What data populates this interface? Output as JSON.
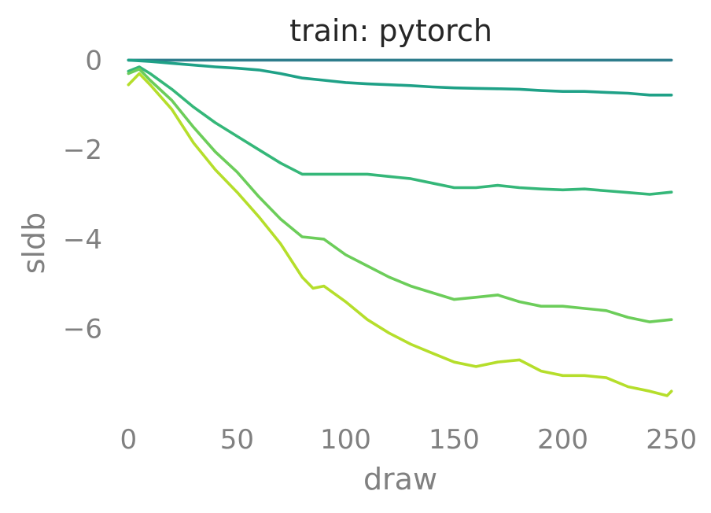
{
  "chart_data": {
    "type": "line",
    "title": "train: pytorch",
    "xlabel": "draw",
    "ylabel": "sldb",
    "xlim": [
      -3,
      253
    ],
    "ylim": [
      -8.1,
      0.5
    ],
    "xticks": [
      0,
      50,
      100,
      150,
      200,
      250
    ],
    "yticks": [
      0,
      -2,
      -4,
      -6
    ],
    "xtick_labels": [
      "0",
      "50",
      "100",
      "150",
      "200",
      "250"
    ],
    "ytick_labels": [
      "0",
      "−2",
      "−4",
      "−6"
    ],
    "grid": false,
    "legend": "none",
    "series": [
      {
        "color": "#2e7d8c",
        "x": [
          0,
          250
        ],
        "y": [
          0,
          0
        ]
      },
      {
        "color": "#1fa187",
        "x": [
          0,
          10,
          20,
          30,
          40,
          50,
          60,
          70,
          80,
          90,
          100,
          110,
          120,
          130,
          140,
          150,
          160,
          170,
          180,
          190,
          200,
          210,
          220,
          230,
          240,
          250
        ],
        "y": [
          0.0,
          -0.03,
          -0.07,
          -0.11,
          -0.15,
          -0.18,
          -0.22,
          -0.3,
          -0.4,
          -0.45,
          -0.5,
          -0.53,
          -0.55,
          -0.57,
          -0.6,
          -0.62,
          -0.63,
          -0.64,
          -0.65,
          -0.68,
          -0.7,
          -0.7,
          -0.72,
          -0.74,
          -0.78,
          -0.78
        ]
      },
      {
        "color": "#35b779",
        "x": [
          0,
          5,
          10,
          20,
          30,
          40,
          50,
          60,
          70,
          80,
          90,
          100,
          110,
          120,
          130,
          140,
          150,
          160,
          170,
          180,
          190,
          200,
          210,
          220,
          230,
          240,
          250
        ],
        "y": [
          -0.25,
          -0.15,
          -0.3,
          -0.65,
          -1.05,
          -1.4,
          -1.7,
          -2.0,
          -2.3,
          -2.55,
          -2.55,
          -2.55,
          -2.55,
          -2.6,
          -2.65,
          -2.75,
          -2.85,
          -2.85,
          -2.8,
          -2.85,
          -2.88,
          -2.9,
          -2.88,
          -2.92,
          -2.96,
          -3.0,
          -2.95
        ]
      },
      {
        "color": "#6ccd5a",
        "x": [
          0,
          5,
          10,
          20,
          30,
          40,
          50,
          60,
          70,
          80,
          90,
          100,
          110,
          120,
          130,
          140,
          150,
          160,
          170,
          180,
          190,
          200,
          210,
          220,
          230,
          240,
          250
        ],
        "y": [
          -0.3,
          -0.2,
          -0.45,
          -0.9,
          -1.5,
          -2.05,
          -2.5,
          -3.05,
          -3.55,
          -3.95,
          -4.0,
          -4.35,
          -4.6,
          -4.85,
          -5.05,
          -5.2,
          -5.35,
          -5.3,
          -5.25,
          -5.4,
          -5.5,
          -5.5,
          -5.55,
          -5.6,
          -5.75,
          -5.85,
          -5.8
        ]
      },
      {
        "color": "#b5de2b",
        "x": [
          0,
          5,
          10,
          20,
          30,
          40,
          50,
          60,
          70,
          80,
          85,
          90,
          100,
          110,
          120,
          130,
          140,
          150,
          160,
          170,
          180,
          190,
          200,
          210,
          220,
          230,
          240,
          248,
          250
        ],
        "y": [
          -0.55,
          -0.3,
          -0.55,
          -1.1,
          -1.85,
          -2.45,
          -2.95,
          -3.5,
          -4.1,
          -4.85,
          -5.1,
          -5.05,
          -5.4,
          -5.8,
          -6.1,
          -6.35,
          -6.55,
          -6.75,
          -6.85,
          -6.75,
          -6.7,
          -6.95,
          -7.05,
          -7.05,
          -7.1,
          -7.3,
          -7.4,
          -7.5,
          -7.4
        ]
      }
    ]
  }
}
